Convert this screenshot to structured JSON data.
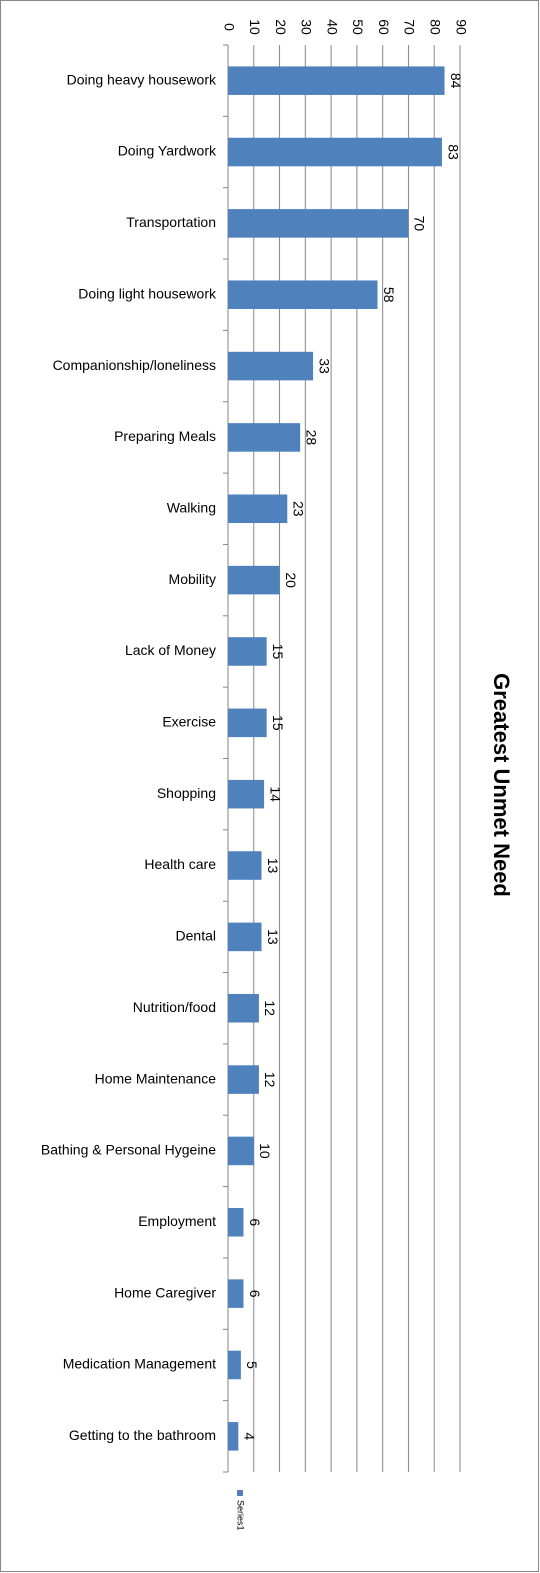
{
  "chart_data": {
    "type": "bar",
    "orientation": "horizontal",
    "title": "Greatest Unmet Need",
    "categories": [
      "Doing heavy housework",
      "Doing Yardwork",
      "Transportation",
      "Doing light housework",
      "Companionship/loneliness",
      "Preparing Meals",
      "Walking",
      "Mobility",
      "Lack of Money",
      "Exercise",
      "Shopping",
      "Health care",
      "Dental",
      "Nutrition/food",
      "Home Maintenance",
      "Bathing & Personal Hygeine",
      "Employment",
      "Home Caregiver",
      "Medication Management",
      "Getting to the bathroom"
    ],
    "series": [
      {
        "name": "Series1",
        "color": "#4f81bd",
        "values": [
          84,
          83,
          70,
          58,
          33,
          28,
          23,
          20,
          15,
          15,
          14,
          13,
          13,
          12,
          12,
          10,
          6,
          6,
          5,
          4
        ]
      }
    ],
    "xlim": [
      0,
      90
    ],
    "xticks": [
      0,
      10,
      20,
      30,
      40,
      50,
      60,
      70,
      80,
      90
    ],
    "grid": true
  }
}
